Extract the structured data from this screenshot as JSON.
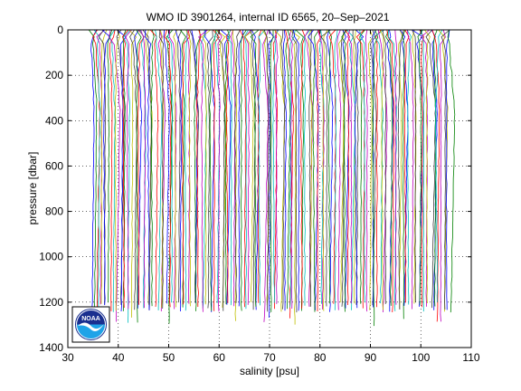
{
  "chart_data": {
    "type": "line",
    "title": "WMO ID 3901264, internal ID 6565, 20–Sep–2021",
    "xlabel": "salinity [psu]",
    "ylabel": "pressure [dbar]",
    "xlim": [
      30,
      110
    ],
    "ylim": [
      0,
      1400
    ],
    "y_reversed": true,
    "x_ticks": [
      30,
      40,
      50,
      60,
      70,
      80,
      90,
      100,
      110
    ],
    "y_ticks": [
      0,
      200,
      400,
      600,
      800,
      1000,
      1200,
      1400
    ],
    "grid": "dotted",
    "profiles": {
      "count": 170,
      "offset_start": 34.6,
      "offset_step": 0.42,
      "surface_salinity": 34.9,
      "deep_salinity": 34.9,
      "min_depth_pressure": 1200,
      "description_hidden": true
    },
    "series_colors": [
      "#0000ff",
      "#008000",
      "#ff0000",
      "#00bfbf",
      "#bf00bf",
      "#bfbf00",
      "#404040"
    ],
    "logo": {
      "text": "NOAA",
      "colors": {
        "outer": "#ffffff",
        "top": "#1a2f8f",
        "bottom": "#1fa3e8",
        "bird": "#ffffff"
      }
    }
  }
}
